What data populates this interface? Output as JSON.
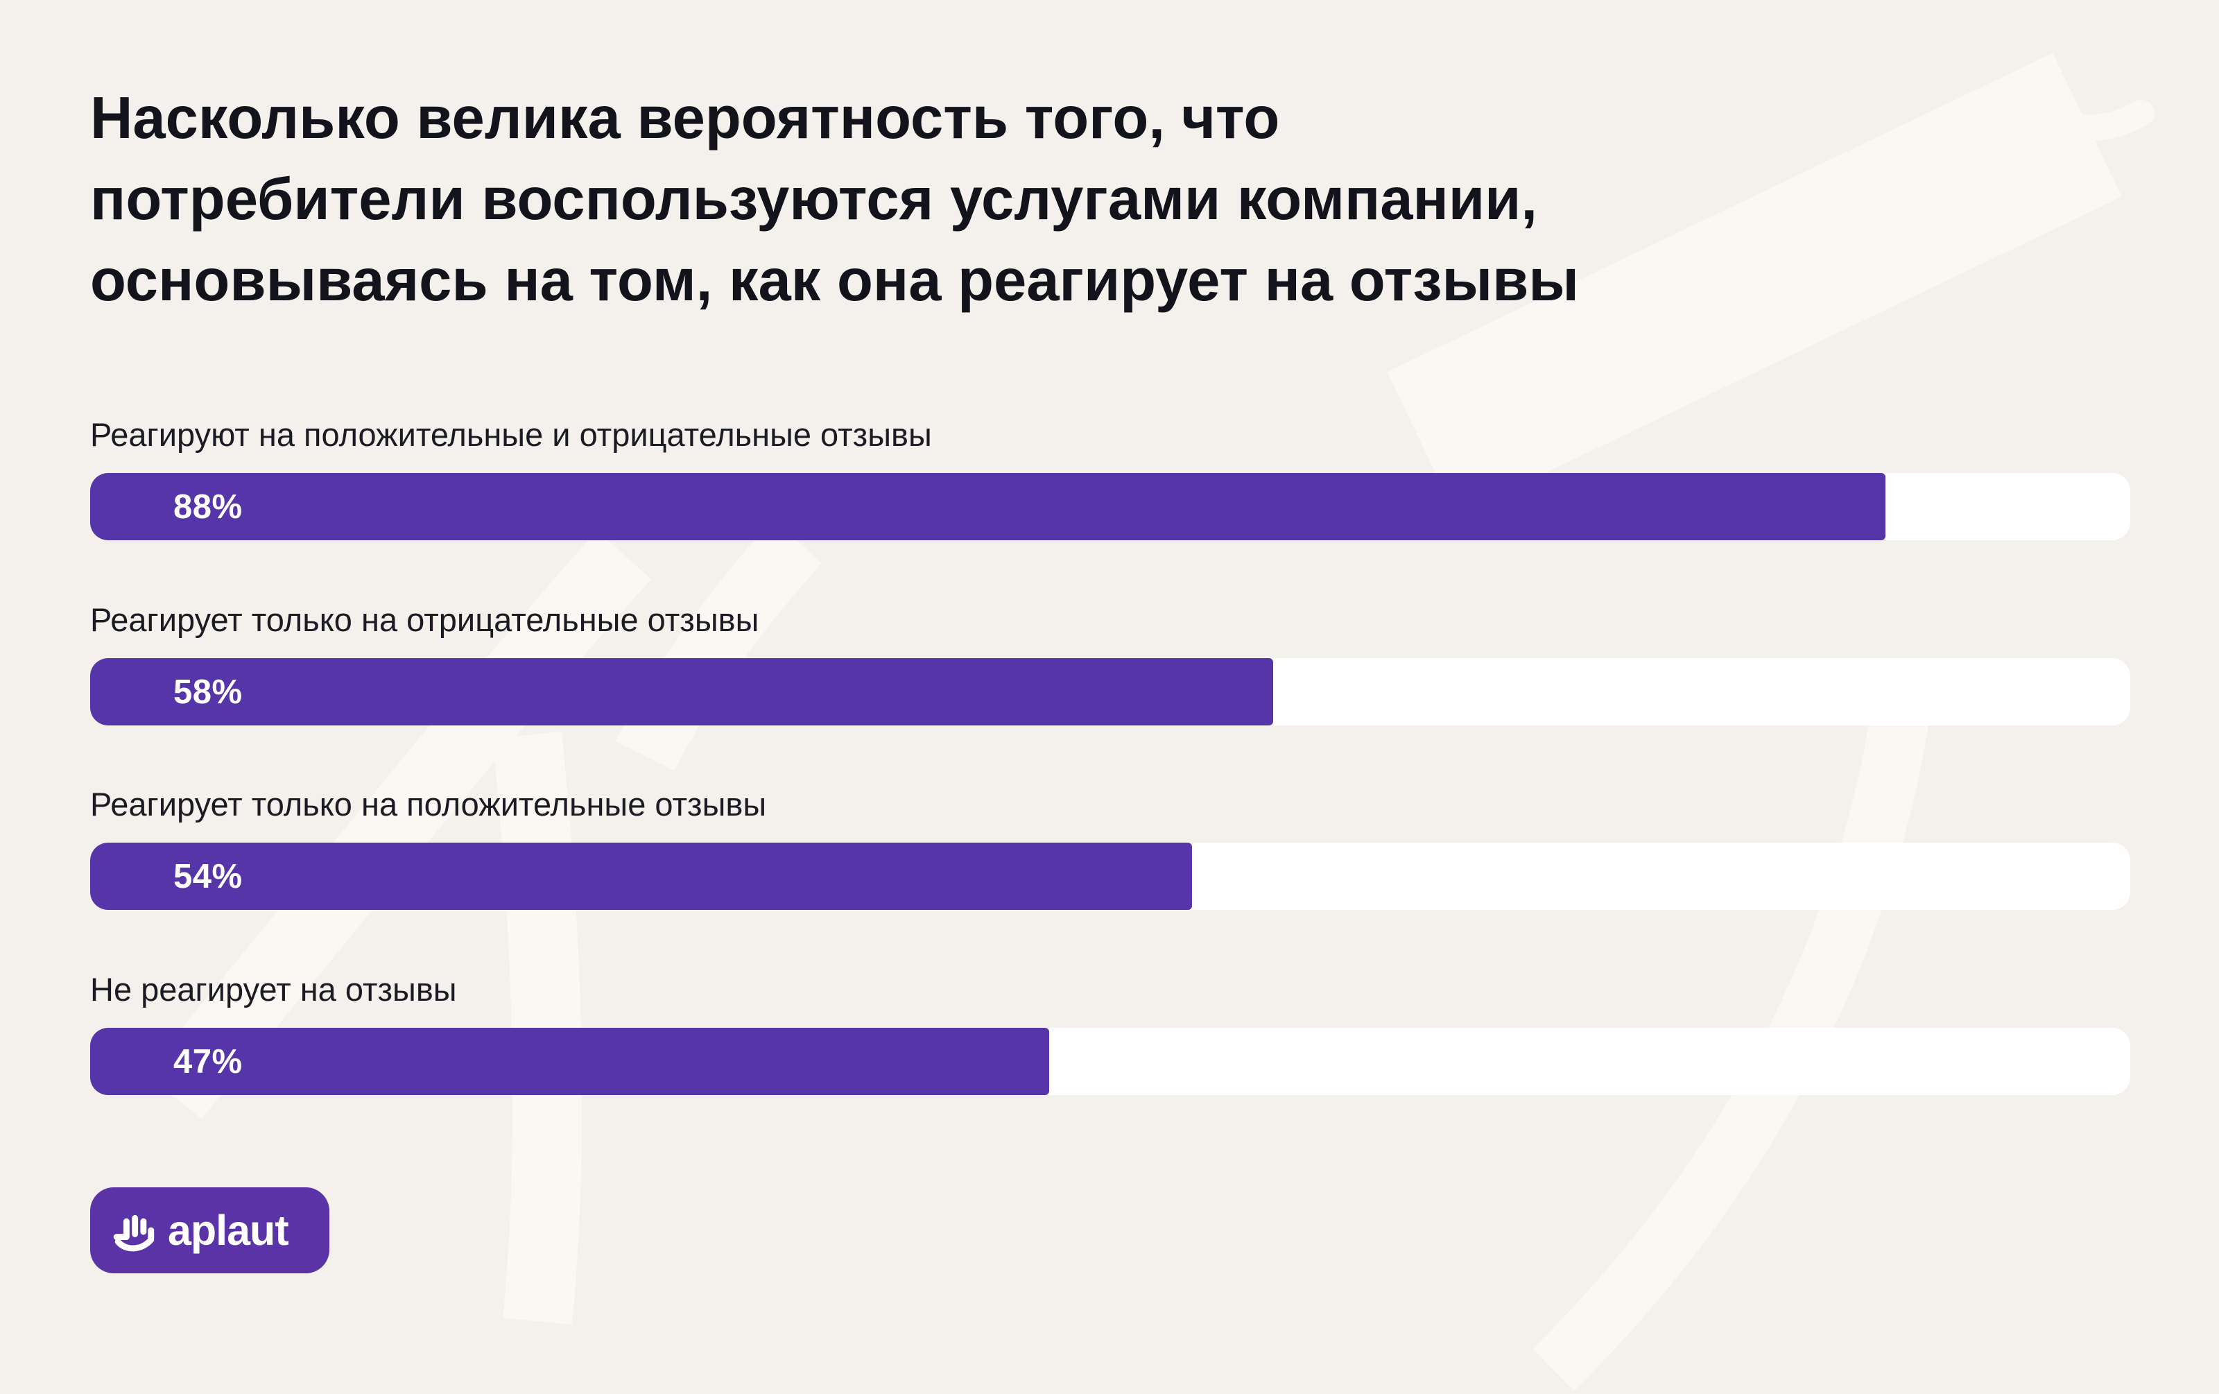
{
  "page": {
    "background_color": "#F4F0EB",
    "decor_color": "#FBF7F2",
    "accent_purple": "#5535A8",
    "track_color": "#FFFFFF",
    "title_color": "#13131B",
    "label_color": "#1B1B23"
  },
  "title": {
    "text": "Насколько велика вероятность того, что потребители воспользуются услугами компании, основываясь на том, как она реагирует на отзывы",
    "lines": [
      "Насколько велика вероятность того, что",
      "потребители воспользуются услугами компании,",
      "основываясь на том, как она реагирует на отзывы"
    ]
  },
  "chart_data": {
    "type": "bar",
    "orientation": "horizontal",
    "title": "Насколько велика вероятность того, что потребители воспользуются услугами компании, основываясь на том, как она реагирует на отзывы",
    "categories": [
      "Реагируют на положительные и отрицательные отзывы",
      "Реагирует только на отрицательные отзывы",
      "Реагирует только на положительные отзывы",
      "Не реагирует на отзывы"
    ],
    "values": [
      88,
      58,
      54,
      47
    ],
    "value_labels": [
      "88%",
      "58%",
      "54%",
      "47%"
    ],
    "unit": "%",
    "xlim": [
      0,
      100
    ],
    "bar_color": "#5535A8",
    "track_color": "#FFFFFF",
    "grid": false,
    "legend": false
  },
  "logo": {
    "text": "aplaut",
    "icon": "hand-clap-icon",
    "background_color": "#5A34A6",
    "text_color": "#FFFFFF"
  }
}
